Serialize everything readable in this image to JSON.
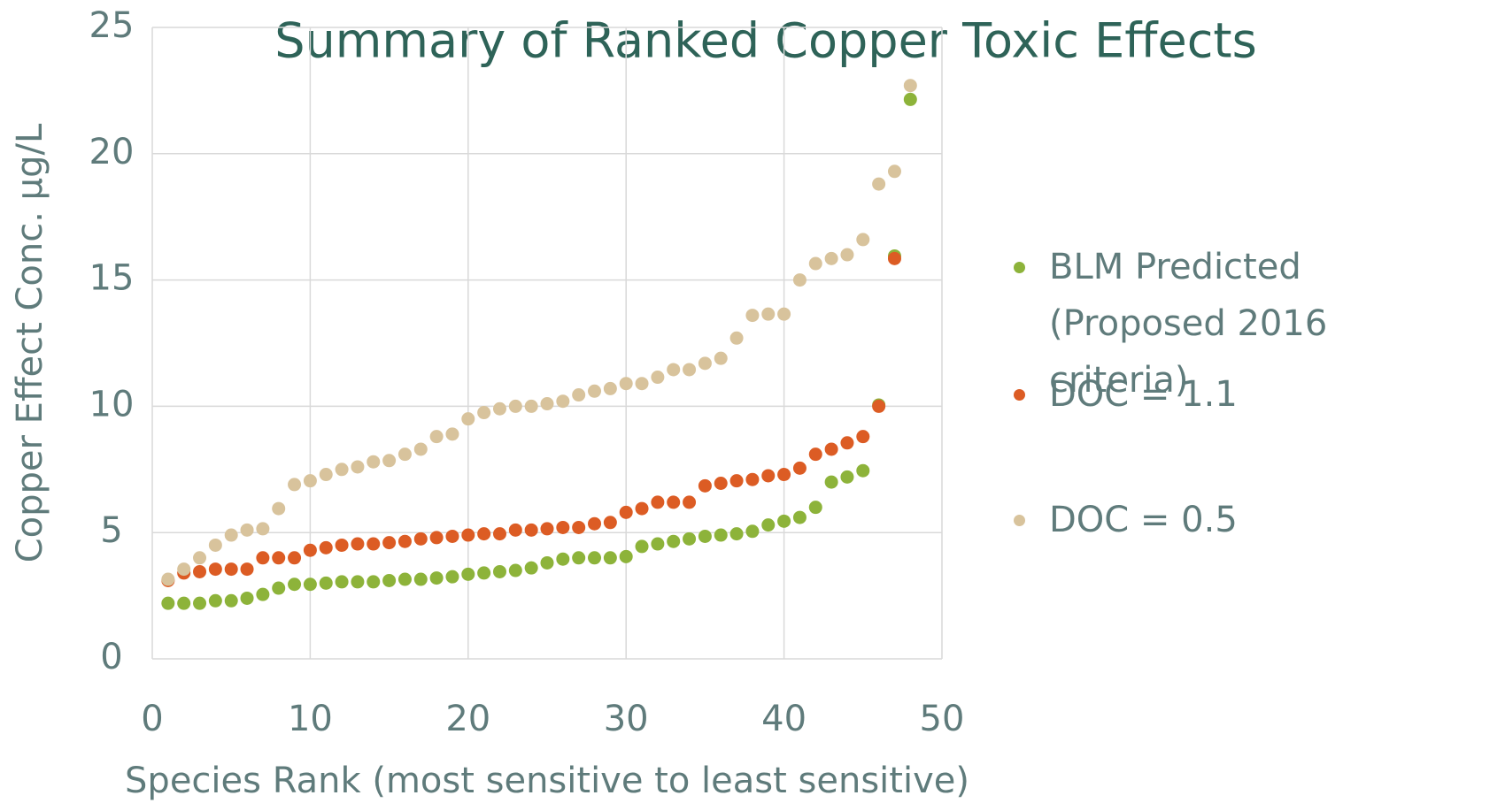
{
  "chart_data": {
    "type": "scatter",
    "title": "Summary of Ranked Copper Toxic Effects",
    "x_label": "Species Rank (most sensitive to least sensitive)",
    "y_label": "Copper Effect Conc. µg/L",
    "x": [
      1,
      2,
      3,
      4,
      5,
      6,
      7,
      8,
      9,
      10,
      11,
      12,
      13,
      14,
      15,
      16,
      17,
      18,
      19,
      20,
      21,
      22,
      23,
      24,
      25,
      26,
      27,
      28,
      29,
      30,
      31,
      32,
      33,
      34,
      35,
      36,
      37,
      38,
      39,
      40,
      41,
      42,
      43,
      44,
      45,
      46,
      47,
      48
    ],
    "series": [
      {
        "name": "BLM Predicted (Proposed 2016 criteria)",
        "color": "#8db33a",
        "values": [
          2.2,
          2.2,
          2.2,
          2.3,
          2.3,
          2.4,
          2.55,
          2.8,
          2.95,
          2.95,
          3.0,
          3.05,
          3.05,
          3.05,
          3.1,
          3.15,
          3.15,
          3.2,
          3.25,
          3.35,
          3.4,
          3.45,
          3.5,
          3.6,
          3.8,
          3.95,
          4.0,
          4.0,
          4.0,
          4.05,
          4.45,
          4.55,
          4.65,
          4.75,
          4.85,
          4.9,
          4.95,
          5.05,
          5.3,
          5.45,
          5.6,
          6.0,
          7.0,
          7.2,
          7.45,
          10.05,
          15.95,
          22.15
        ]
      },
      {
        "name": "DOC = 1.1",
        "color": "#dc5c24",
        "values": [
          3.1,
          3.4,
          3.45,
          3.55,
          3.55,
          3.55,
          4.0,
          4.0,
          4.0,
          4.3,
          4.4,
          4.5,
          4.55,
          4.55,
          4.6,
          4.65,
          4.75,
          4.8,
          4.85,
          4.9,
          4.95,
          4.95,
          5.1,
          5.1,
          5.15,
          5.2,
          5.2,
          5.35,
          5.4,
          5.8,
          5.95,
          6.2,
          6.2,
          6.2,
          6.85,
          6.95,
          7.05,
          7.1,
          7.25,
          7.3,
          7.55,
          8.1,
          8.3,
          8.55,
          8.8,
          10.0,
          15.85,
          null
        ]
      },
      {
        "name": "DOC = 0.5",
        "color": "#d8c39c",
        "values": [
          3.15,
          3.55,
          4.0,
          4.5,
          4.9,
          5.1,
          5.15,
          5.95,
          6.9,
          7.05,
          7.3,
          7.5,
          7.6,
          7.8,
          7.85,
          8.1,
          8.3,
          8.8,
          8.9,
          9.5,
          9.75,
          9.9,
          10.0,
          10.0,
          10.1,
          10.2,
          10.45,
          10.6,
          10.7,
          10.9,
          10.9,
          11.15,
          11.45,
          11.45,
          11.7,
          11.9,
          12.7,
          13.6,
          13.65,
          13.65,
          15.0,
          15.65,
          15.85,
          16.0,
          16.6,
          18.8,
          19.3,
          22.7
        ]
      }
    ],
    "xlim": [
      0,
      50
    ],
    "xticks": [
      0,
      10,
      20,
      30,
      40,
      50
    ],
    "ylim": [
      0,
      25
    ],
    "yticks": [
      0,
      5,
      10,
      15,
      20,
      25
    ],
    "grid": true,
    "legend": "right"
  }
}
